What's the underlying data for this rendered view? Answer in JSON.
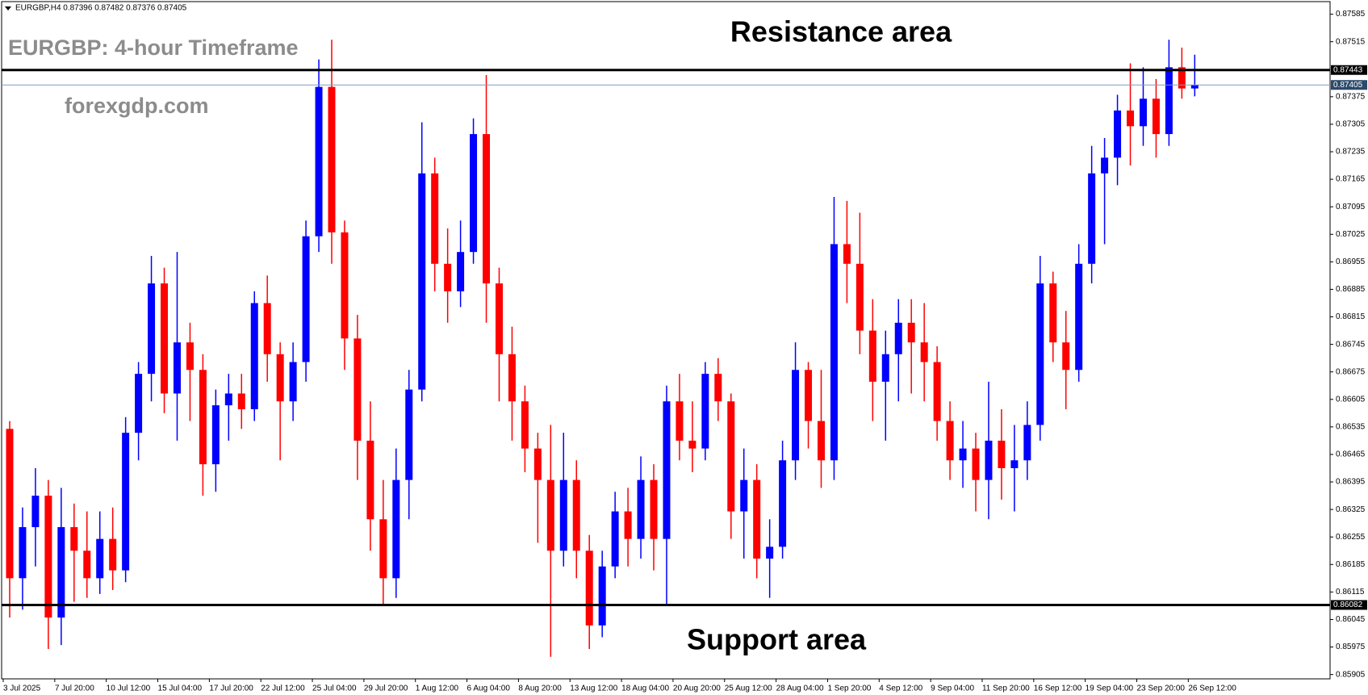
{
  "chart_data": {
    "type": "candlestick",
    "symbol_info": "EURGBP,H4  0.87396 0.87482 0.87376 0.87405",
    "title": "EURGBP: 4-hour Timeframe",
    "watermark": "forexgdp.com",
    "annotations": [
      "Resistance area",
      "Support area"
    ],
    "up_color": "#0000ff",
    "down_color": "#ff0000",
    "categories": [
      "3 Jul 2025",
      null,
      null,
      null,
      "7 Jul 20:00",
      null,
      null,
      null,
      "10 Jul 12:00",
      null,
      null,
      null,
      "15 Jul 04:00",
      null,
      null,
      null,
      "17 Jul 20:00",
      null,
      null,
      null,
      "22 Jul 12:00",
      null,
      null,
      null,
      "25 Jul 04:00",
      null,
      null,
      null,
      "29 Jul 20:00",
      null,
      null,
      null,
      "1 Aug 12:00",
      null,
      null,
      null,
      "6 Aug 04:00",
      null,
      null,
      null,
      "8 Aug 20:00",
      null,
      null,
      null,
      "13 Aug 12:00",
      null,
      null,
      null,
      "18 Aug 04:00",
      null,
      null,
      null,
      "20 Aug 20:00",
      null,
      null,
      null,
      "25 Aug 12:00",
      null,
      null,
      null,
      "28 Aug 04:00",
      null,
      null,
      null,
      "1 Sep 20:00",
      null,
      null,
      null,
      "4 Sep 12:00",
      null,
      null,
      null,
      "9 Sep 04:00",
      null,
      null,
      null,
      "11 Sep 20:00",
      null,
      null,
      null,
      "16 Sep 12:00",
      null,
      null,
      null,
      "19 Sep 04:00",
      null,
      null,
      null,
      "23 Sep 20:00",
      null,
      null,
      null,
      "26 Sep 12:00"
    ],
    "open": [
      0.8653,
      0.8615,
      0.8628,
      0.8636,
      0.8605,
      0.8628,
      0.8622,
      0.8615,
      0.8625,
      0.8617,
      0.8652,
      0.8667,
      0.869,
      0.8662,
      0.8675,
      0.8668,
      0.8644,
      0.8659,
      0.8662,
      0.8658,
      0.8685,
      0.8672,
      0.866,
      0.867,
      0.8702,
      0.874,
      0.8703,
      0.8676,
      0.865,
      0.863,
      0.8615,
      0.864,
      0.8663,
      0.8718,
      0.8695,
      0.8688,
      0.8698,
      0.8728,
      0.869,
      0.8672,
      0.866,
      0.8648,
      0.864,
      0.8622,
      0.864,
      0.8622,
      0.8603,
      0.8618,
      0.8632,
      0.8625,
      0.864,
      0.8625,
      0.866,
      0.865,
      0.8648,
      0.8667,
      0.866,
      0.8632,
      0.864,
      0.862,
      0.8623,
      0.8645,
      0.8668,
      0.8655,
      0.8645,
      0.87,
      0.8695,
      0.8678,
      0.8665,
      0.8672,
      0.868,
      0.8675,
      0.867,
      0.8655,
      0.8645,
      0.8648,
      0.864,
      0.865,
      0.8643,
      0.8645,
      0.8654,
      0.869,
      0.8675,
      0.8668,
      0.8695,
      0.8718,
      0.8722,
      0.8734,
      0.873,
      0.8737,
      0.8728,
      0.8745,
      0.87396
    ],
    "high": [
      0.8655,
      0.8633,
      0.8643,
      0.864,
      0.8638,
      0.8634,
      0.8632,
      0.8632,
      0.8633,
      0.8656,
      0.867,
      0.8697,
      0.8694,
      0.8698,
      0.868,
      0.8672,
      0.8663,
      0.8667,
      0.8667,
      0.8688,
      0.8692,
      0.8675,
      0.8675,
      0.8706,
      0.8747,
      0.8752,
      0.8706,
      0.8682,
      0.866,
      0.864,
      0.8648,
      0.8668,
      0.8731,
      0.8722,
      0.8704,
      0.8706,
      0.8732,
      0.8743,
      0.8694,
      0.8679,
      0.8664,
      0.8652,
      0.8654,
      0.8652,
      0.8645,
      0.8626,
      0.8622,
      0.8637,
      0.8638,
      0.8646,
      0.8644,
      0.8664,
      0.8667,
      0.866,
      0.867,
      0.8671,
      0.8662,
      0.8648,
      0.8644,
      0.863,
      0.865,
      0.8675,
      0.867,
      0.8668,
      0.8712,
      0.8711,
      0.8708,
      0.8686,
      0.8678,
      0.8686,
      0.8686,
      0.8685,
      0.8674,
      0.866,
      0.8655,
      0.8652,
      0.8665,
      0.8658,
      0.8654,
      0.866,
      0.8697,
      0.8693,
      0.8683,
      0.87,
      0.8725,
      0.8727,
      0.8738,
      0.8746,
      0.8745,
      0.8742,
      0.8752,
      0.875,
      0.87482
    ],
    "low": [
      0.8605,
      0.8607,
      0.8618,
      0.8597,
      0.8598,
      0.8609,
      0.861,
      0.8611,
      0.8612,
      0.8614,
      0.8645,
      0.866,
      0.8657,
      0.865,
      0.8655,
      0.8636,
      0.8637,
      0.865,
      0.8653,
      0.8655,
      0.8665,
      0.8645,
      0.8655,
      0.8665,
      0.8698,
      0.8695,
      0.8668,
      0.864,
      0.8622,
      0.8608,
      0.861,
      0.863,
      0.866,
      0.8688,
      0.868,
      0.8684,
      0.8695,
      0.868,
      0.866,
      0.865,
      0.8642,
      0.8624,
      0.8595,
      0.8618,
      0.8615,
      0.8597,
      0.86,
      0.8615,
      0.8618,
      0.862,
      0.8617,
      0.8608,
      0.8645,
      0.8642,
      0.8645,
      0.8655,
      0.8625,
      0.862,
      0.8615,
      0.861,
      0.862,
      0.864,
      0.8648,
      0.8638,
      0.864,
      0.8685,
      0.8672,
      0.8655,
      0.865,
      0.866,
      0.8662,
      0.866,
      0.865,
      0.864,
      0.8638,
      0.8632,
      0.863,
      0.8635,
      0.8632,
      0.864,
      0.865,
      0.867,
      0.8658,
      0.8665,
      0.869,
      0.87,
      0.8715,
      0.872,
      0.8725,
      0.8722,
      0.8725,
      0.8737,
      0.87376
    ],
    "close": [
      0.8615,
      0.8628,
      0.8636,
      0.8605,
      0.8628,
      0.8622,
      0.8615,
      0.8625,
      0.8617,
      0.8652,
      0.8667,
      0.869,
      0.8662,
      0.8675,
      0.8668,
      0.8644,
      0.8659,
      0.8662,
      0.8658,
      0.8685,
      0.8672,
      0.866,
      0.867,
      0.8702,
      0.874,
      0.8703,
      0.8676,
      0.865,
      0.863,
      0.8615,
      0.864,
      0.8663,
      0.8718,
      0.8695,
      0.8688,
      0.8698,
      0.8728,
      0.869,
      0.8672,
      0.866,
      0.8648,
      0.864,
      0.8622,
      0.864,
      0.8622,
      0.8603,
      0.8618,
      0.8632,
      0.8625,
      0.864,
      0.8625,
      0.866,
      0.865,
      0.8648,
      0.8667,
      0.866,
      0.8632,
      0.864,
      0.862,
      0.8623,
      0.8645,
      0.8668,
      0.8655,
      0.8645,
      0.87,
      0.8695,
      0.8678,
      0.8665,
      0.8672,
      0.868,
      0.8675,
      0.867,
      0.8655,
      0.8645,
      0.8648,
      0.864,
      0.865,
      0.8643,
      0.8645,
      0.8654,
      0.869,
      0.8675,
      0.8668,
      0.8695,
      0.8718,
      0.8722,
      0.8734,
      0.873,
      0.8737,
      0.8728,
      0.8745,
      0.87396,
      0.87405
    ],
    "ylim": [
      0.85894,
      0.87617
    ],
    "yticks": [
      0.85905,
      0.85975,
      0.86045,
      0.86115,
      0.86185,
      0.86255,
      0.86325,
      0.86395,
      0.86465,
      0.86535,
      0.86605,
      0.86675,
      0.86745,
      0.86815,
      0.86885,
      0.86955,
      0.87025,
      0.87095,
      0.87165,
      0.87235,
      0.87305,
      0.87375,
      0.87515,
      0.87585
    ],
    "hlines": [
      {
        "value": 0.87443,
        "color": "#000000"
      },
      {
        "value": 0.86082,
        "color": "#000000"
      }
    ],
    "price_line": {
      "value": 0.87405,
      "color": "#7f9cbf"
    }
  }
}
